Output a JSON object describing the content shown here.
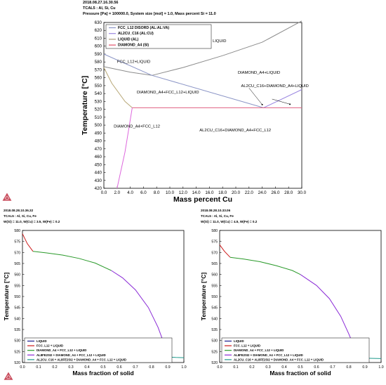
{
  "chart_data": [
    {
      "type": "line",
      "header": [
        "2018.08.27.16.30.56",
        "TCAL5 : Al, Si, Cu",
        "Pressure [Pa] = 100000.0, System size [mol] = 1.0, Mass percent Si = 11.0"
      ],
      "xlabel": "Mass percent Cu",
      "ylabel": "Temperature [°C]",
      "xlim": [
        0,
        30
      ],
      "ylim": [
        420,
        630
      ],
      "xticks": [
        0.0,
        2.0,
        4.0,
        6.0,
        8.0,
        10.0,
        12.0,
        14.0,
        16.0,
        18.0,
        20.0,
        22.0,
        24.0,
        26.0,
        28.0,
        30.0
      ],
      "yticks": [
        420,
        430,
        440,
        450,
        460,
        470,
        480,
        490,
        500,
        510,
        520,
        530,
        540,
        550,
        560,
        570,
        580,
        590,
        600,
        610,
        620,
        630
      ],
      "grid": false,
      "legend_position": "top-left",
      "legend": [
        {
          "label": "FCC_L12 DISORD (AL:AL:VA)",
          "color": "#8b95c6"
        },
        {
          "label": "AL2CU_C16 (AL:CU)",
          "color": "#9a86e0"
        },
        {
          "label": "LIQUID (AL)",
          "color": "#a99a7a"
        },
        {
          "label": "DIAMOND_A4 (SI)",
          "color": "#e0506a"
        }
      ],
      "series": [
        {
          "name": "LIQUID (AL)",
          "color": "#8c8c8c",
          "x": [
            0,
            4,
            7.3,
            12,
            18,
            24,
            30
          ],
          "y": [
            574,
            567,
            563,
            573,
            588,
            605,
            632
          ]
        },
        {
          "name": "FCC_L12 DISORD (AL:AL:VA)",
          "color": "#8b95c6",
          "x": [
            0,
            7.3,
            24.2
          ],
          "y": [
            590,
            563,
            522
          ]
        },
        {
          "name": "AL2CU_C16 (AL:CU)",
          "color": "#9a86e0",
          "x": [
            24.2,
            30
          ],
          "y": [
            522,
            545
          ]
        },
        {
          "name": "DIAMOND_A4 (SI)",
          "color": "#e06080",
          "x": [
            4.3,
            30
          ],
          "y": [
            522,
            522
          ]
        },
        {
          "name": "",
          "color": "#b8a878",
          "x": [
            0,
            1.2,
            3.2,
            4.3
          ],
          "y": [
            573,
            553,
            530,
            522
          ]
        },
        {
          "name": "",
          "color": "#dd66dd",
          "x": [
            2.0,
            3.2,
            4.3
          ],
          "y": [
            420,
            466,
            522
          ]
        }
      ],
      "annotations": [
        {
          "text": "LIQUID",
          "x": 16.5,
          "y": 605
        },
        {
          "text": "FCC_L12+LIQUID",
          "x": 2.0,
          "y": 579
        },
        {
          "text": "DIAMOND_A4+LIQUID",
          "x": 20.3,
          "y": 565
        },
        {
          "text": "AL2CU_C16+DIAMOND_A4+LIQUID",
          "x": 20.8,
          "y": 548
        },
        {
          "text": "DIAMOND_A4+FCC_L12+LIQUID",
          "x": 5.0,
          "y": 540
        },
        {
          "text": "DIAMOND_A4+FCC_L12",
          "x": 1.5,
          "y": 497
        },
        {
          "text": "AL2CU_C16+DIAMOND_A4+FCC_L12",
          "x": 14.5,
          "y": 492
        }
      ]
    },
    {
      "type": "line",
      "header": [
        "2018.08.28.10.36.32",
        "TCAL5 : Al, Si, Cu, Fe",
        "W(Si) = 11.0, W(Cu) = 3.5, W(Fe) = 0.2"
      ],
      "xlabel": "Mass fraction of solid",
      "ylabel": "Temperature [°C]",
      "xlim": [
        0,
        1
      ],
      "ylim": [
        520,
        580
      ],
      "xticks": [
        0.0,
        0.1,
        0.2,
        0.3,
        0.4,
        0.5,
        0.6,
        0.7,
        0.8,
        0.9,
        1.0
      ],
      "yticks": [
        520,
        525,
        530,
        535,
        540,
        545,
        550,
        555,
        560,
        565,
        570,
        575,
        580
      ],
      "grid": false,
      "legend_position": "bottom-left",
      "legend": [
        {
          "label": "LIQUID",
          "color": "#1a1a8c"
        },
        {
          "label": "FCC_L12 + LIQUID",
          "color": "#cc1a1a"
        },
        {
          "label": "DIAMOND_A4 + FCC_L12 + LIQUID",
          "color": "#2a9a2a"
        },
        {
          "label": "AL8FE2SI2 + DIAMOND_A4 + FCC_L12 + LIQUID",
          "color": "#8a2ad6"
        },
        {
          "label": "AL2CU_C16 + AL8FE2SI2 + DIAMOND_A4 + FCC_L12 + LIQUID",
          "color": "#1e9a8c"
        }
      ],
      "series": [
        {
          "name": "FCC_L12 + LIQUID",
          "color": "#cc1a1a",
          "x": [
            0.0,
            0.03,
            0.065
          ],
          "y": [
            578.5,
            574,
            570.5
          ]
        },
        {
          "name": "DIAMOND_A4 + FCC_L12 + LIQUID",
          "color": "#2a9a2a",
          "x": [
            0.065,
            0.15,
            0.25,
            0.35,
            0.45,
            0.55
          ],
          "y": [
            570.5,
            569.8,
            568.8,
            567.3,
            565.2,
            561.8
          ]
        },
        {
          "name": "AL8FE2SI2 + DIAMOND_A4 + FCC_L12 + LIQUID",
          "color": "#8a2ad6",
          "x": [
            0.55,
            0.62,
            0.7,
            0.78,
            0.84,
            0.88,
            0.9,
            0.91
          ],
          "y": [
            561.8,
            558.5,
            553,
            545,
            536,
            528,
            524,
            522.5
          ]
        },
        {
          "name": "AL2CU_C16 + AL8FE2SI2 + DIAMOND_A4 + FCC_L12 + LIQUID",
          "color": "#1e9a8c",
          "x": [
            0.91,
            0.95,
            1.0
          ],
          "y": [
            522.5,
            522.3,
            522.2
          ]
        }
      ]
    },
    {
      "type": "line",
      "header": [
        "2018.08.28.10.33.06",
        "TCAL5 : Al, Si, Cu, Fe",
        "W(Si) = 11.0, W(Cu) = 4.5, W(Fe) = 0.2"
      ],
      "xlabel": "Mass fraction of solid",
      "ylabel": "Temperature [°C]",
      "xlim": [
        0,
        1
      ],
      "ylim": [
        520,
        580
      ],
      "xticks": [
        0.0,
        0.1,
        0.2,
        0.3,
        0.4,
        0.5,
        0.6,
        0.7,
        0.8,
        0.9,
        1.0
      ],
      "yticks": [
        520,
        525,
        530,
        535,
        540,
        545,
        550,
        555,
        560,
        565,
        570,
        575,
        580
      ],
      "grid": false,
      "legend_position": "bottom-left",
      "legend": [
        {
          "label": "LIQUID",
          "color": "#1a1a8c"
        },
        {
          "label": "FCC_L12 + LIQUID",
          "color": "#cc1a1a"
        },
        {
          "label": "DIAMOND_A4 + FCC_L12 + LIQUID",
          "color": "#2a9a2a"
        },
        {
          "label": "AL8FE2SI2 + DIAMOND_A4 + FCC_L12 + LIQUID",
          "color": "#8a2ad6"
        },
        {
          "label": "AL2CU_C16 + AL8FE2SI2 + DIAMOND_A4 + FCC_L12 + LIQUID",
          "color": "#1e9a8c"
        }
      ],
      "series": [
        {
          "name": "FCC_L12 + LIQUID",
          "color": "#cc1a1a",
          "x": [
            0.0,
            0.03,
            0.065
          ],
          "y": [
            573.5,
            570.5,
            567.8
          ]
        },
        {
          "name": "DIAMOND_A4 + FCC_L12 + LIQUID",
          "color": "#2a9a2a",
          "x": [
            0.065,
            0.15,
            0.25,
            0.35,
            0.45,
            0.5
          ],
          "y": [
            567.8,
            567,
            565.8,
            564,
            561.8,
            560
          ]
        },
        {
          "name": "AL8FE2SI2 + DIAMOND_A4 + FCC_L12 + LIQUID",
          "color": "#8a2ad6",
          "x": [
            0.5,
            0.6,
            0.68,
            0.75,
            0.8,
            0.84,
            0.86
          ],
          "y": [
            560,
            555,
            549,
            541,
            533,
            526,
            522
          ]
        },
        {
          "name": "AL2CU_C16 + AL8FE2SI2 + DIAMOND_A4 + FCC_L12 + LIQUID",
          "color": "#1e9a8c",
          "x": [
            0.86,
            0.93,
            1.0
          ],
          "y": [
            522,
            521.9,
            521.8
          ]
        }
      ]
    }
  ]
}
